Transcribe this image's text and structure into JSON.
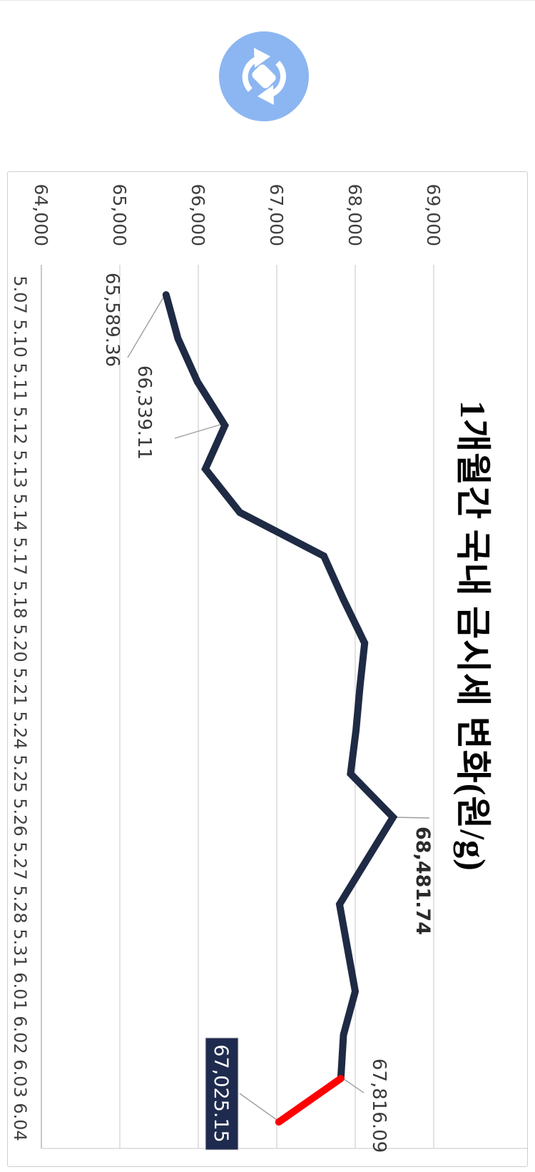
{
  "page": {
    "refresh_button": {
      "icon": "sync-rotate-icon",
      "circle_color": "#8cb6f1",
      "glyph_color": "#ffffff"
    }
  },
  "chart_data": {
    "type": "line",
    "title": "1개월간 국내 금시세 변화(원/g)",
    "orientation": "rendered landscape, rotated 90deg clockwise on page",
    "categories": [
      "5.07",
      "5.10",
      "5.11",
      "5.12",
      "5.13",
      "5.14",
      "5.17",
      "5.18",
      "5.20",
      "5.21",
      "5.24",
      "5.25",
      "5.26",
      "5.27",
      "5.28",
      "5.31",
      "6.01",
      "6.02",
      "6.03",
      "6.04"
    ],
    "values": [
      65589.36,
      65740,
      65990,
      66339.11,
      66090,
      66530,
      67600,
      67850,
      68120,
      68060,
      68010,
      67940,
      68481.74,
      68140,
      67800,
      67900,
      68000,
      67850,
      67816.09,
      67025.15
    ],
    "xlabel": "",
    "ylabel": "",
    "ylim": [
      64000,
      69000
    ],
    "y_ticks": [
      "64,000",
      "65,000",
      "66,000",
      "67,000",
      "68,000",
      "69,000"
    ],
    "grid": true,
    "legend": "none",
    "colors": {
      "line": "#1f2a44",
      "last_segment": "#fe0000",
      "gridline": "#d9d9d9",
      "axis_line": "#b5b5b5",
      "label_text": "#3f3f3f",
      "title_text": "#1d2e52",
      "leader_line": "#9e9e9e",
      "last_value_box_fill": "#1f2b4e"
    },
    "annotations": [
      {
        "category": "5.07",
        "label": "65,589.36",
        "style": "plain"
      },
      {
        "category": "5.12",
        "label": "66,339.11",
        "style": "plain"
      },
      {
        "category": "5.26",
        "label": "68,481.74",
        "style": "bold"
      },
      {
        "category": "6.03",
        "label": "67,816.09",
        "style": "plain"
      },
      {
        "category": "6.04",
        "label": "67,025.15",
        "style": "boxed-white-on-navy"
      }
    ]
  }
}
